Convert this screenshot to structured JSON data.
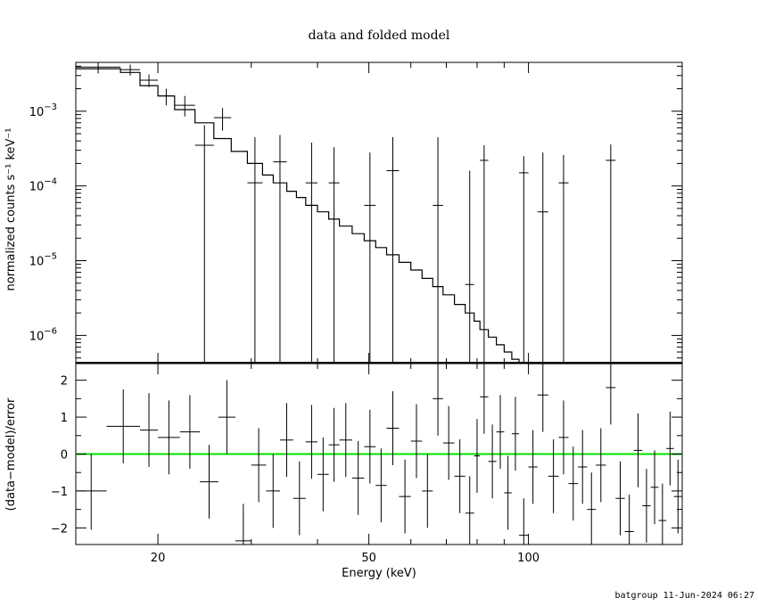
{
  "chart_data": [
    {
      "type": "scatter",
      "title": "data and folded model",
      "xlabel": "Energy (keV)",
      "ylabel": "normalized counts s⁻¹ keV⁻¹",
      "xscale": "log",
      "yscale": "log",
      "xlim": [
        14,
        195
      ],
      "ylim": [
        4.2e-07,
        0.0045
      ],
      "xticks": [
        {
          "value": 20,
          "label": "20"
        },
        {
          "value": 50,
          "label": "50"
        },
        {
          "value": 100,
          "label": "100"
        }
      ],
      "yticks": [
        {
          "value": 0.001,
          "mant": "10",
          "exp": "−3"
        },
        {
          "value": 0.0001,
          "mant": "10",
          "exp": "−4"
        },
        {
          "value": 1e-05,
          "mant": "10",
          "exp": "−5"
        },
        {
          "value": 1e-06,
          "mant": "10",
          "exp": "−6"
        }
      ],
      "series": [
        {
          "role": "data",
          "points": [
            {
              "x0": 14,
              "x1": 17,
              "y": 0.0039,
              "ylo": 0.0032,
              "yhi": 0.0045
            },
            {
              "x0": 17,
              "x1": 18.5,
              "y": 0.0036,
              "ylo": 0.003,
              "yhi": 0.0042
            },
            {
              "x0": 18.5,
              "x1": 20,
              "y": 0.0026,
              "ylo": 0.0021,
              "yhi": 0.0031
            },
            {
              "x0": 20,
              "x1": 21.5,
              "y": 0.0016,
              "ylo": 0.0012,
              "yhi": 0.002
            },
            {
              "x0": 21.5,
              "x1": 23.5,
              "y": 0.0012,
              "ylo": 0.00085,
              "yhi": 0.0016
            },
            {
              "x0": 23.5,
              "x1": 25.5,
              "y": 0.00035,
              "ylo": 4.2e-07,
              "yhi": 0.00065
            },
            {
              "x0": 25.5,
              "x1": 27.5,
              "y": 0.00082,
              "ylo": 0.00055,
              "yhi": 0.0011
            },
            {
              "x0": 29.5,
              "x1": 31.5,
              "y": 0.00011,
              "ylo": 4.2e-07,
              "yhi": 0.00045
            },
            {
              "x0": 33,
              "x1": 35,
              "y": 0.00021,
              "ylo": 4.2e-07,
              "yhi": 0.00048
            },
            {
              "x0": 38,
              "x1": 40,
              "y": 0.00011,
              "ylo": 4.2e-07,
              "yhi": 0.00038
            },
            {
              "x0": 42,
              "x1": 44,
              "y": 0.00011,
              "ylo": 4.2e-07,
              "yhi": 0.00033
            },
            {
              "x0": 49,
              "x1": 51.5,
              "y": 5.5e-05,
              "ylo": 4.2e-07,
              "yhi": 0.00028
            },
            {
              "x0": 54,
              "x1": 57,
              "y": 0.00016,
              "ylo": 4.2e-07,
              "yhi": 0.00045
            },
            {
              "x0": 66,
              "x1": 69,
              "y": 5.5e-05,
              "ylo": 4.2e-07,
              "yhi": 0.00045
            },
            {
              "x0": 76,
              "x1": 79,
              "y": 4.8e-06,
              "ylo": 4.2e-07,
              "yhi": 0.00016
            },
            {
              "x0": 81,
              "x1": 84,
              "y": 0.00022,
              "ylo": 4.2e-07,
              "yhi": 0.00035
            },
            {
              "x0": 96,
              "x1": 100,
              "y": 0.00015,
              "ylo": 4.2e-07,
              "yhi": 0.00025
            },
            {
              "x0": 104,
              "x1": 109,
              "y": 4.5e-05,
              "ylo": 4.2e-07,
              "yhi": 0.00028
            },
            {
              "x0": 114,
              "x1": 119,
              "y": 0.00011,
              "ylo": 4.2e-07,
              "yhi": 0.00026
            },
            {
              "x0": 140,
              "x1": 146,
              "y": 0.00022,
              "ylo": 4.2e-07,
              "yhi": 0.00036
            }
          ]
        },
        {
          "role": "model",
          "steps": [
            {
              "x0": 14,
              "x1": 17,
              "y": 0.0037
            },
            {
              "x0": 17,
              "x1": 18.5,
              "y": 0.0033
            },
            {
              "x0": 18.5,
              "x1": 20,
              "y": 0.0022
            },
            {
              "x0": 20,
              "x1": 21.5,
              "y": 0.0016
            },
            {
              "x0": 21.5,
              "x1": 23.5,
              "y": 0.00105
            },
            {
              "x0": 23.5,
              "x1": 25.5,
              "y": 0.0007
            },
            {
              "x0": 25.5,
              "x1": 27.5,
              "y": 0.00043
            },
            {
              "x0": 27.5,
              "x1": 29.5,
              "y": 0.00029
            },
            {
              "x0": 29.5,
              "x1": 31.5,
              "y": 0.0002
            },
            {
              "x0": 31.5,
              "x1": 33,
              "y": 0.00014
            },
            {
              "x0": 33,
              "x1": 35,
              "y": 0.00011
            },
            {
              "x0": 35,
              "x1": 36.5,
              "y": 8.5e-05
            },
            {
              "x0": 36.5,
              "x1": 38,
              "y": 7e-05
            },
            {
              "x0": 38,
              "x1": 40,
              "y": 5.5e-05
            },
            {
              "x0": 40,
              "x1": 42,
              "y": 4.5e-05
            },
            {
              "x0": 42,
              "x1": 44,
              "y": 3.6e-05
            },
            {
              "x0": 44,
              "x1": 46.5,
              "y": 2.9e-05
            },
            {
              "x0": 46.5,
              "x1": 49,
              "y": 2.3e-05
            },
            {
              "x0": 49,
              "x1": 51.5,
              "y": 1.85e-05
            },
            {
              "x0": 51.5,
              "x1": 54,
              "y": 1.5e-05
            },
            {
              "x0": 54,
              "x1": 57,
              "y": 1.2e-05
            },
            {
              "x0": 57,
              "x1": 60,
              "y": 9.5e-06
            },
            {
              "x0": 60,
              "x1": 63,
              "y": 7.5e-06
            },
            {
              "x0": 63,
              "x1": 66,
              "y": 5.8e-06
            },
            {
              "x0": 66,
              "x1": 69,
              "y": 4.5e-06
            },
            {
              "x0": 69,
              "x1": 72.5,
              "y": 3.5e-06
            },
            {
              "x0": 72.5,
              "x1": 76,
              "y": 2.6e-06
            },
            {
              "x0": 76,
              "x1": 79,
              "y": 2e-06
            },
            {
              "x0": 79,
              "x1": 81,
              "y": 1.55e-06
            },
            {
              "x0": 81,
              "x1": 84,
              "y": 1.2e-06
            },
            {
              "x0": 84,
              "x1": 87,
              "y": 9.5e-07
            },
            {
              "x0": 87,
              "x1": 90,
              "y": 7.5e-07
            },
            {
              "x0": 90,
              "x1": 93,
              "y": 6e-07
            },
            {
              "x0": 93,
              "x1": 96,
              "y": 4.8e-07
            },
            {
              "x0": 96,
              "x1": 100,
              "y": 4.3e-07
            }
          ]
        }
      ]
    },
    {
      "type": "scatter",
      "xlabel": "Energy (keV)",
      "ylabel": "(data−model)/error",
      "xscale": "log",
      "xlim": [
        14,
        195
      ],
      "ylim": [
        -2.45,
        2.45
      ],
      "yticks": [
        {
          "value": 2,
          "label": "2"
        },
        {
          "value": 1,
          "label": "1"
        },
        {
          "value": 0,
          "label": "0"
        },
        {
          "value": -1,
          "label": "−1"
        },
        {
          "value": -2,
          "label": "−2"
        }
      ],
      "zero_line_color": "#00e000",
      "series": [
        {
          "role": "residuals",
          "points": [
            {
              "x0": 14,
              "x1": 16,
              "y": -1.0,
              "ylo": -2.05,
              "yhi": 0.0
            },
            {
              "x0": 16,
              "x1": 18.5,
              "y": 0.75,
              "ylo": -0.25,
              "yhi": 1.75
            },
            {
              "x0": 18.5,
              "x1": 20,
              "y": 0.65,
              "ylo": -0.35,
              "yhi": 1.65
            },
            {
              "x0": 20,
              "x1": 22,
              "y": 0.45,
              "ylo": -0.55,
              "yhi": 1.45
            },
            {
              "x0": 22,
              "x1": 24,
              "y": 0.6,
              "ylo": -0.4,
              "yhi": 1.6
            },
            {
              "x0": 24,
              "x1": 26,
              "y": -0.75,
              "ylo": -1.75,
              "yhi": 0.25
            },
            {
              "x0": 26,
              "x1": 28,
              "y": 1.0,
              "ylo": 0.0,
              "yhi": 2.0
            },
            {
              "x0": 28,
              "x1": 30,
              "y": -2.35,
              "ylo": -2.45,
              "yhi": -1.35
            },
            {
              "x0": 30,
              "x1": 32,
              "y": -0.3,
              "ylo": -1.3,
              "yhi": 0.7
            },
            {
              "x0": 32,
              "x1": 34,
              "y": -1.0,
              "ylo": -2.0,
              "yhi": 0.0
            },
            {
              "x0": 34,
              "x1": 36,
              "y": 0.38,
              "ylo": -0.62,
              "yhi": 1.38
            },
            {
              "x0": 36,
              "x1": 38,
              "y": -1.2,
              "ylo": -2.2,
              "yhi": -0.2
            },
            {
              "x0": 38,
              "x1": 40,
              "y": 0.33,
              "ylo": -0.67,
              "yhi": 1.33
            },
            {
              "x0": 40,
              "x1": 42,
              "y": -0.55,
              "ylo": -1.55,
              "yhi": 0.45
            },
            {
              "x0": 42,
              "x1": 44,
              "y": 0.25,
              "ylo": -0.75,
              "yhi": 1.25
            },
            {
              "x0": 44,
              "x1": 46.5,
              "y": 0.38,
              "ylo": -0.62,
              "yhi": 1.38
            },
            {
              "x0": 46.5,
              "x1": 49,
              "y": -0.65,
              "ylo": -1.65,
              "yhi": 0.35
            },
            {
              "x0": 49,
              "x1": 51.5,
              "y": 0.2,
              "ylo": -0.8,
              "yhi": 1.2
            },
            {
              "x0": 51.5,
              "x1": 54,
              "y": -0.85,
              "ylo": -1.85,
              "yhi": 0.15
            },
            {
              "x0": 54,
              "x1": 57,
              "y": 0.7,
              "ylo": -0.3,
              "yhi": 1.7
            },
            {
              "x0": 57,
              "x1": 60,
              "y": -1.15,
              "ylo": -2.15,
              "yhi": -0.15
            },
            {
              "x0": 60,
              "x1": 63,
              "y": 0.35,
              "ylo": -0.65,
              "yhi": 1.35
            },
            {
              "x0": 63,
              "x1": 66,
              "y": -1.0,
              "ylo": -2.0,
              "yhi": 0.0
            },
            {
              "x0": 66,
              "x1": 69,
              "y": 1.5,
              "ylo": 0.5,
              "yhi": 2.45
            },
            {
              "x0": 69,
              "x1": 72.5,
              "y": 0.3,
              "ylo": -0.7,
              "yhi": 1.3
            },
            {
              "x0": 72.5,
              "x1": 76,
              "y": -0.6,
              "ylo": -1.6,
              "yhi": 0.4
            },
            {
              "x0": 76,
              "x1": 79,
              "y": -1.6,
              "ylo": -2.45,
              "yhi": -0.6
            },
            {
              "x0": 79,
              "x1": 81,
              "y": -0.05,
              "ylo": -1.05,
              "yhi": 0.95
            },
            {
              "x0": 81,
              "x1": 84,
              "y": 1.55,
              "ylo": 0.55,
              "yhi": 2.45
            },
            {
              "x0": 84,
              "x1": 87,
              "y": -0.2,
              "ylo": -1.2,
              "yhi": 0.8
            },
            {
              "x0": 87,
              "x1": 90,
              "y": 0.6,
              "ylo": -0.4,
              "yhi": 1.6
            },
            {
              "x0": 90,
              "x1": 93,
              "y": -1.05,
              "ylo": -2.05,
              "yhi": -0.05
            },
            {
              "x0": 93,
              "x1": 96,
              "y": 0.55,
              "ylo": -0.45,
              "yhi": 1.55
            },
            {
              "x0": 96,
              "x1": 100,
              "y": -2.2,
              "ylo": -2.45,
              "yhi": -1.2
            },
            {
              "x0": 100,
              "x1": 104,
              "y": -0.35,
              "ylo": -1.35,
              "yhi": 0.65
            },
            {
              "x0": 104,
              "x1": 109,
              "y": 1.6,
              "ylo": 0.6,
              "yhi": 2.45
            },
            {
              "x0": 109,
              "x1": 114,
              "y": -0.6,
              "ylo": -1.6,
              "yhi": 0.4
            },
            {
              "x0": 114,
              "x1": 119,
              "y": 0.45,
              "ylo": -0.55,
              "yhi": 1.45
            },
            {
              "x0": 119,
              "x1": 124,
              "y": -0.8,
              "ylo": -1.8,
              "yhi": 0.2
            },
            {
              "x0": 124,
              "x1": 129,
              "y": -0.35,
              "ylo": -1.35,
              "yhi": 0.65
            },
            {
              "x0": 129,
              "x1": 134,
              "y": -1.5,
              "ylo": -2.45,
              "yhi": -0.5
            },
            {
              "x0": 134,
              "x1": 140,
              "y": -0.3,
              "ylo": -1.3,
              "yhi": 0.7
            },
            {
              "x0": 140,
              "x1": 146,
              "y": 1.8,
              "ylo": 0.8,
              "yhi": 2.45
            },
            {
              "x0": 146,
              "x1": 152,
              "y": -1.2,
              "ylo": -2.2,
              "yhi": -0.2
            },
            {
              "x0": 152,
              "x1": 158,
              "y": -2.1,
              "ylo": -2.45,
              "yhi": -1.1
            },
            {
              "x0": 158,
              "x1": 164,
              "y": 0.1,
              "ylo": -0.9,
              "yhi": 1.1
            },
            {
              "x0": 164,
              "x1": 170,
              "y": -1.4,
              "ylo": -2.4,
              "yhi": -0.4
            },
            {
              "x0": 170,
              "x1": 176,
              "y": -0.9,
              "ylo": -1.9,
              "yhi": 0.1
            },
            {
              "x0": 176,
              "x1": 182,
              "y": -1.8,
              "ylo": -2.45,
              "yhi": -0.8
            },
            {
              "x0": 182,
              "x1": 188,
              "y": 0.15,
              "ylo": -0.85,
              "yhi": 1.15
            },
            {
              "x0": 188,
              "x1": 195,
              "y": -1.15,
              "ylo": -2.15,
              "yhi": -0.15
            }
          ]
        }
      ]
    }
  ],
  "footer": "batgroup 11-Jun-2024 06:27"
}
